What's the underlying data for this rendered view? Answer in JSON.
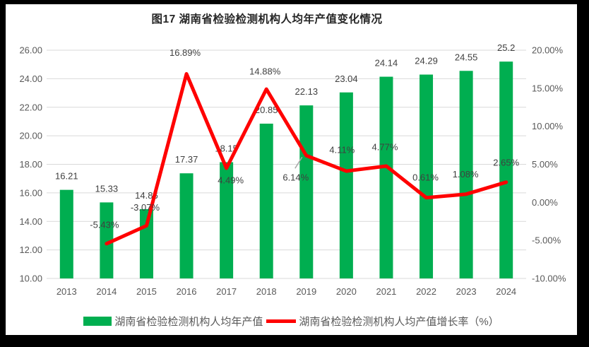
{
  "title": "图17 湖南省检验检测机构人均年产值变化情况",
  "colors": {
    "frame_bg": "#000000",
    "chart_bg": "#FFFFFF",
    "bar_green": "#00AE50",
    "line_red": "#FF0000",
    "gridline": "#D9D9D9",
    "axis_text": "#595959",
    "data_label_text": "#404040",
    "leader_line": "#A6A6A6",
    "title_text": "#262626"
  },
  "legend": [
    {
      "type": "bar",
      "color": "#00AE50",
      "label": "湖南省检验检测机构人均年产值"
    },
    {
      "type": "line",
      "color": "#FF0000",
      "label": "湖南省检验检测机构人均产值增长率（%）"
    }
  ],
  "chart_data": {
    "type": "combo-bar-line",
    "title": "图17 湖南省检验检测机构人均年产值变化情况",
    "categories": [
      "2013",
      "2014",
      "2015",
      "2016",
      "2017",
      "2018",
      "2019",
      "2020",
      "2021",
      "2022",
      "2023",
      "2024"
    ],
    "series": [
      {
        "name": "湖南省检验检测机构人均年产值",
        "type": "bar",
        "axis": "left",
        "color": "#00AE50",
        "values": [
          16.21,
          15.33,
          14.86,
          17.37,
          18.15,
          20.85,
          22.13,
          23.04,
          24.14,
          24.29,
          24.55,
          25.2
        ],
        "labels": [
          "16.21",
          "15.33",
          "14.86",
          "17.37",
          "18.15",
          "20.85",
          "22.13",
          "23.04",
          "24.14",
          "24.29",
          "24.55",
          "25.2"
        ]
      },
      {
        "name": "湖南省检验检测机构人均产值增长率（%）",
        "type": "line",
        "axis": "right",
        "color": "#FF0000",
        "values": [
          null,
          -5.43,
          -3.07,
          16.89,
          4.49,
          14.88,
          6.14,
          4.11,
          4.77,
          0.61,
          1.08,
          2.65
        ],
        "labels": [
          null,
          "-5.43%",
          "-3.07%",
          "16.89%",
          "4.49%",
          "14.88%",
          "6.14%",
          "4.11%",
          "4.77%",
          "0.61%",
          "1.08%",
          "2.65%"
        ],
        "label_offsets": [
          null,
          [
            -3,
            -27
          ],
          [
            -2,
            -26
          ],
          [
            -2,
            -30
          ],
          [
            6,
            17
          ],
          [
            -2,
            -25
          ],
          [
            -15,
            31
          ],
          [
            -6,
            -30
          ],
          [
            -2,
            -27
          ],
          [
            -1,
            -29
          ],
          [
            -1,
            -28
          ],
          [
            0,
            -28
          ]
        ],
        "leader_line_index": 6
      }
    ],
    "left_axis": {
      "min": 10,
      "max": 26,
      "step": 2,
      "ticks": [
        "26.00",
        "24.00",
        "22.00",
        "20.00",
        "18.00",
        "16.00",
        "14.00",
        "12.00",
        "10.00"
      ]
    },
    "right_axis": {
      "min": -10,
      "max": 20,
      "step": 5,
      "ticks": [
        "20.00%",
        "15.00%",
        "10.00%",
        "5.00%",
        "0.00%",
        "-5.00%",
        "-10.00%"
      ]
    },
    "grid": true,
    "legend_position": "bottom"
  }
}
